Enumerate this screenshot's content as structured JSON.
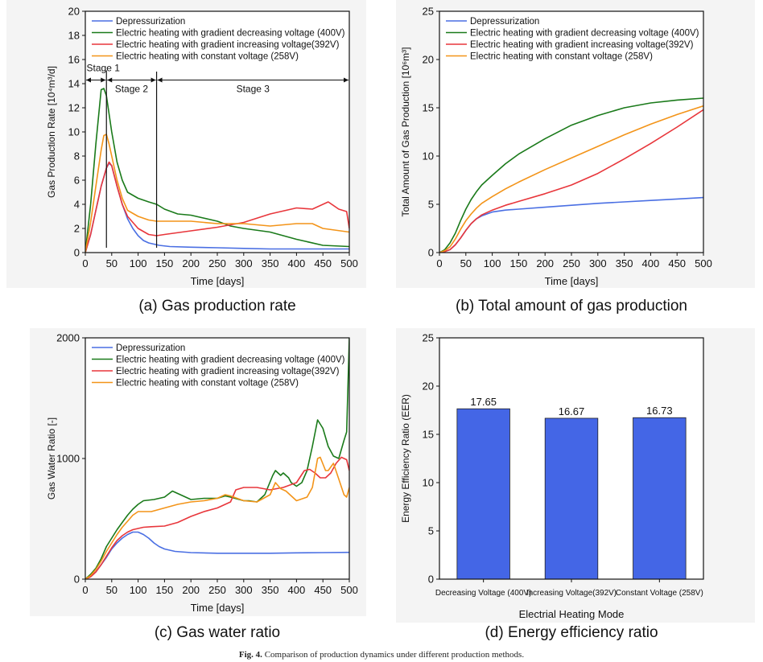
{
  "colors": {
    "dep": "#4a6fe3",
    "dec": "#1a7a1a",
    "inc": "#e8363b",
    "con": "#f39419",
    "bar": "#4466e6"
  },
  "caption": {
    "fig": "Fig. 4.",
    "text": "Comparison of production dynamics under different production methods."
  },
  "series_names": {
    "dep": "Depressurization",
    "dec": "Electric heating with gradient decreasing voltage  (400V)",
    "inc": "Electric heating with gradient increasing voltage(392V)",
    "con": "Electric heating with constant voltage (258V)"
  },
  "chart_data": [
    {
      "id": "a",
      "type": "line",
      "subtitle": "(a) Gas production rate",
      "xlabel": "Time [days]",
      "ylabel": "Gas Production Rate [10⁴m³/d]",
      "xlim": [
        0,
        500
      ],
      "ylim": [
        0,
        20
      ],
      "xticks": [
        0,
        50,
        100,
        150,
        200,
        250,
        300,
        350,
        400,
        450,
        500
      ],
      "yticks": [
        0,
        2,
        4,
        6,
        8,
        10,
        12,
        14,
        16,
        18,
        20
      ],
      "annotations": {
        "stage1": "Stage 1",
        "stage2": "Stage 2",
        "stage3": "Stage 3",
        "boundaries": [
          40,
          135
        ]
      },
      "series": [
        {
          "key": "dep",
          "x": [
            0,
            10,
            20,
            30,
            40,
            45,
            50,
            60,
            70,
            80,
            90,
            100,
            110,
            120,
            130,
            140,
            160,
            200,
            250,
            300,
            350,
            400,
            450,
            500
          ],
          "y": [
            0,
            1.5,
            3.5,
            5.5,
            7,
            7.4,
            7.2,
            5.5,
            4,
            2.8,
            2,
            1.4,
            1,
            0.8,
            0.7,
            0.6,
            0.5,
            0.45,
            0.4,
            0.35,
            0.3,
            0.3,
            0.3,
            0.3
          ]
        },
        {
          "key": "dec",
          "x": [
            0,
            10,
            20,
            30,
            35,
            40,
            45,
            50,
            60,
            70,
            80,
            100,
            120,
            135,
            150,
            175,
            200,
            250,
            275,
            300,
            350,
            400,
            450,
            500
          ],
          "y": [
            0,
            4,
            9,
            13.5,
            13.6,
            13,
            11.5,
            10,
            7.5,
            6,
            5,
            4.5,
            4.2,
            4,
            3.6,
            3.2,
            3.1,
            2.6,
            2.2,
            2,
            1.7,
            1.1,
            0.6,
            0.5
          ]
        },
        {
          "key": "inc",
          "x": [
            0,
            10,
            20,
            30,
            40,
            45,
            50,
            60,
            70,
            80,
            100,
            120,
            135,
            150,
            200,
            250,
            300,
            350,
            400,
            430,
            460,
            480,
            495,
            500
          ],
          "y": [
            0,
            1.5,
            3.5,
            5.5,
            7,
            7.5,
            7.2,
            5.5,
            4,
            3,
            2,
            1.5,
            1.4,
            1.5,
            1.8,
            2.1,
            2.5,
            3.2,
            3.7,
            3.6,
            4.2,
            3.6,
            3.4,
            2
          ]
        },
        {
          "key": "con",
          "x": [
            0,
            10,
            20,
            30,
            35,
            40,
            45,
            50,
            60,
            70,
            80,
            100,
            120,
            135,
            150,
            200,
            250,
            300,
            350,
            400,
            430,
            450,
            500
          ],
          "y": [
            0,
            2.5,
            5.5,
            8.5,
            9.7,
            9.8,
            9,
            8,
            6,
            4.5,
            3.5,
            3,
            2.7,
            2.6,
            2.6,
            2.6,
            2.4,
            2.4,
            2.2,
            2.4,
            2.4,
            2,
            1.7
          ]
        }
      ]
    },
    {
      "id": "b",
      "type": "line",
      "subtitle": "(b) Total amount of gas production",
      "xlabel": "Time [days]",
      "ylabel": "Total Amount of Gas Production [10⁶m³]",
      "xlim": [
        0,
        500
      ],
      "ylim": [
        0,
        25
      ],
      "xticks": [
        0,
        50,
        100,
        150,
        200,
        250,
        300,
        350,
        400,
        450,
        500
      ],
      "yticks": [
        0,
        5,
        10,
        15,
        20,
        25
      ],
      "series": [
        {
          "key": "dep",
          "x": [
            0,
            10,
            20,
            30,
            40,
            50,
            60,
            70,
            80,
            90,
            100,
            125,
            150,
            200,
            250,
            300,
            350,
            400,
            450,
            500
          ],
          "y": [
            0,
            0.1,
            0.3,
            0.8,
            1.5,
            2.3,
            3,
            3.5,
            3.8,
            4,
            4.2,
            4.4,
            4.5,
            4.7,
            4.9,
            5.1,
            5.25,
            5.4,
            5.55,
            5.7
          ]
        },
        {
          "key": "dec",
          "x": [
            0,
            10,
            20,
            30,
            40,
            50,
            60,
            70,
            80,
            100,
            125,
            150,
            200,
            250,
            300,
            350,
            400,
            450,
            500
          ],
          "y": [
            0,
            0.3,
            1,
            2,
            3.3,
            4.5,
            5.5,
            6.3,
            7,
            8,
            9.2,
            10.2,
            11.8,
            13.2,
            14.2,
            15,
            15.5,
            15.8,
            16
          ]
        },
        {
          "key": "inc",
          "x": [
            0,
            10,
            20,
            30,
            40,
            50,
            60,
            70,
            80,
            100,
            125,
            150,
            200,
            250,
            300,
            350,
            400,
            450,
            500
          ],
          "y": [
            0,
            0.1,
            0.3,
            0.8,
            1.5,
            2.3,
            3,
            3.5,
            3.9,
            4.4,
            4.9,
            5.3,
            6.1,
            7,
            8.2,
            9.7,
            11.3,
            13,
            14.8
          ]
        },
        {
          "key": "con",
          "x": [
            0,
            10,
            20,
            30,
            40,
            50,
            60,
            70,
            80,
            100,
            125,
            150,
            200,
            250,
            300,
            350,
            400,
            450,
            500
          ],
          "y": [
            0,
            0.2,
            0.6,
            1.4,
            2.4,
            3.3,
            4,
            4.6,
            5.1,
            5.8,
            6.6,
            7.3,
            8.6,
            9.8,
            11,
            12.2,
            13.3,
            14.3,
            15.2
          ]
        }
      ]
    },
    {
      "id": "c",
      "type": "line",
      "subtitle": "(c) Gas water ratio",
      "xlabel": "Time [days]",
      "ylabel": "Gas Water Ratio [-]",
      "xlim": [
        0,
        500
      ],
      "ylim": [
        0,
        2000
      ],
      "xticks": [
        0,
        50,
        100,
        150,
        200,
        250,
        300,
        350,
        400,
        450,
        500
      ],
      "yticks": [
        0,
        1000,
        2000
      ],
      "series": [
        {
          "key": "dep",
          "x": [
            0,
            10,
            20,
            30,
            40,
            50,
            60,
            70,
            80,
            90,
            100,
            110,
            120,
            130,
            140,
            150,
            170,
            200,
            250,
            300,
            350,
            400,
            450,
            500
          ],
          "y": [
            0,
            20,
            60,
            120,
            180,
            250,
            300,
            340,
            370,
            390,
            390,
            370,
            340,
            300,
            270,
            250,
            230,
            220,
            215,
            215,
            215,
            218,
            220,
            222
          ]
        },
        {
          "key": "dec",
          "x": [
            0,
            10,
            20,
            30,
            40,
            50,
            60,
            70,
            80,
            90,
            100,
            110,
            130,
            150,
            165,
            175,
            200,
            225,
            250,
            265,
            275,
            300,
            310,
            325,
            340,
            355,
            360,
            370,
            375,
            385,
            390,
            400,
            410,
            420,
            430,
            440,
            450,
            460,
            470,
            480,
            490,
            495,
            500
          ],
          "y": [
            0,
            40,
            90,
            170,
            270,
            340,
            410,
            470,
            530,
            580,
            620,
            650,
            660,
            680,
            730,
            710,
            660,
            670,
            670,
            690,
            680,
            650,
            650,
            640,
            700,
            860,
            900,
            860,
            880,
            840,
            800,
            770,
            800,
            900,
            1100,
            1320,
            1250,
            1100,
            1020,
            1000,
            1150,
            1220,
            2000
          ]
        },
        {
          "key": "inc",
          "x": [
            0,
            10,
            20,
            30,
            40,
            50,
            60,
            70,
            80,
            90,
            100,
            110,
            125,
            150,
            175,
            200,
            225,
            250,
            275,
            285,
            300,
            325,
            350,
            375,
            400,
            415,
            425,
            435,
            445,
            455,
            465,
            475,
            485,
            495,
            500
          ],
          "y": [
            0,
            20,
            60,
            120,
            190,
            260,
            320,
            360,
            390,
            410,
            420,
            430,
            435,
            440,
            470,
            520,
            560,
            590,
            640,
            740,
            760,
            760,
            740,
            760,
            800,
            900,
            910,
            880,
            840,
            840,
            880,
            960,
            1010,
            990,
            900
          ]
        },
        {
          "key": "con",
          "x": [
            0,
            10,
            20,
            30,
            40,
            50,
            60,
            70,
            80,
            90,
            100,
            110,
            125,
            150,
            175,
            200,
            225,
            250,
            265,
            275,
            300,
            325,
            350,
            360,
            370,
            380,
            400,
            420,
            430,
            440,
            445,
            455,
            460,
            470,
            480,
            490,
            495,
            500
          ],
          "y": [
            0,
            30,
            80,
            150,
            230,
            300,
            370,
            430,
            480,
            530,
            560,
            560,
            560,
            590,
            620,
            640,
            650,
            670,
            700,
            690,
            650,
            640,
            700,
            800,
            750,
            730,
            650,
            680,
            760,
            1000,
            1010,
            900,
            900,
            960,
            830,
            700,
            680,
            760
          ]
        }
      ]
    },
    {
      "id": "d",
      "type": "bar",
      "subtitle": "(d) Energy efficiency ratio",
      "xlabel": "Electrial Heating Mode",
      "ylabel": "Energy Efficiency Ratio (EER)",
      "ylim": [
        0,
        25
      ],
      "yticks": [
        0,
        5,
        10,
        15,
        20,
        25
      ],
      "categories": [
        "Decreasing Voltage (400V)",
        "Increasing Voltage(392V)",
        "Constant Voltage (258V)"
      ],
      "values": [
        17.65,
        16.67,
        16.73
      ],
      "labels": [
        "17.65",
        "16.67",
        "16.73"
      ]
    }
  ]
}
